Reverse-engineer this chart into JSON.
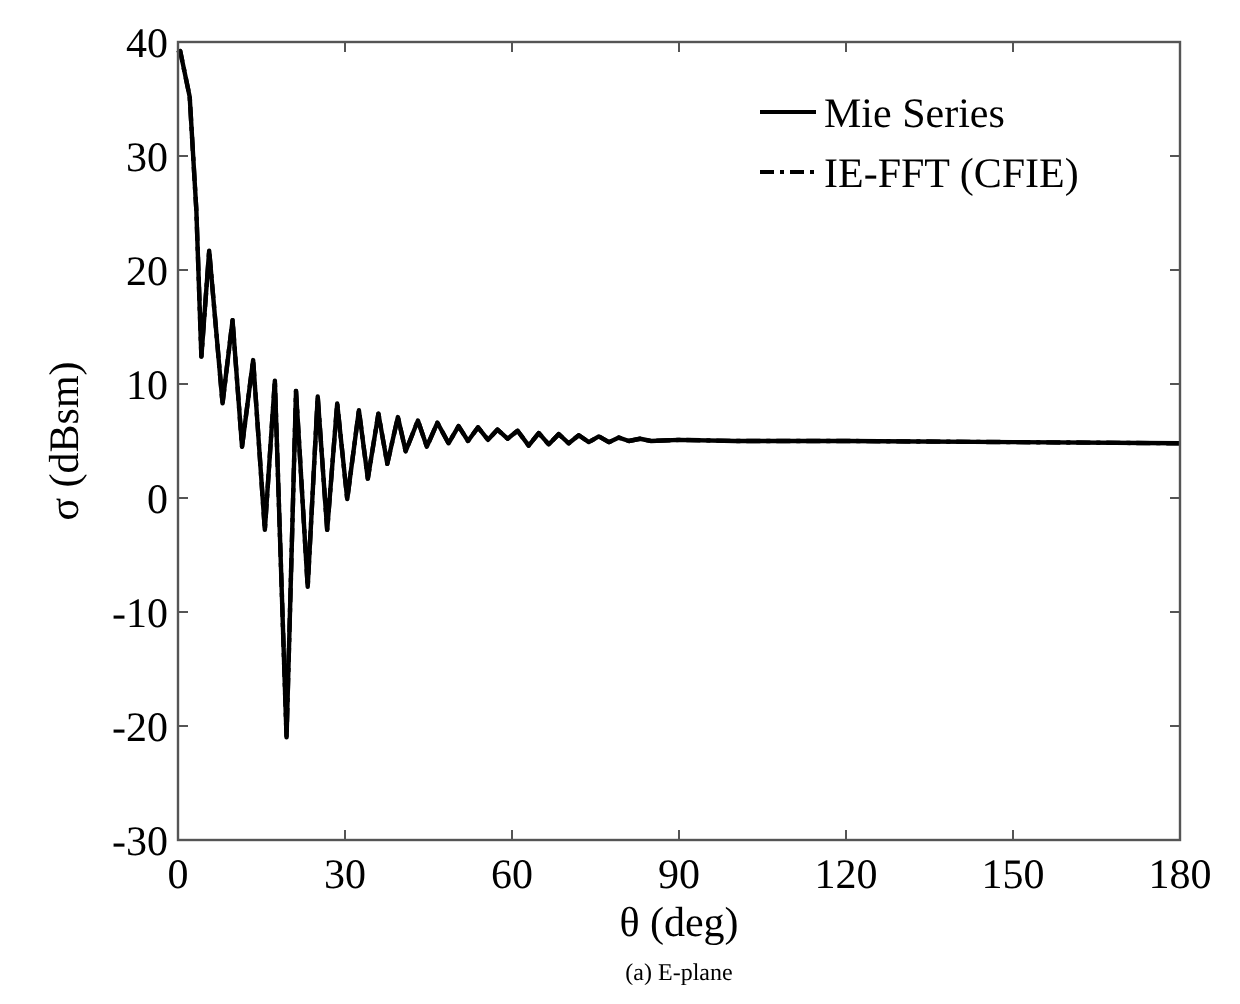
{
  "chart_data": {
    "type": "line",
    "xlabel": "θ (deg)",
    "ylabel": "σ (dBsm)",
    "annotations": [
      "(a) E-plane"
    ],
    "x": [
      0,
      0.4,
      2.1,
      3.3,
      4.2,
      5.6,
      8.0,
      9.8,
      11.5,
      13.5,
      15.6,
      17.4,
      19.5,
      21.2,
      23.3,
      25.1,
      26.8,
      28.6,
      30.4,
      32.5,
      34.1,
      36.0,
      37.6,
      39.5,
      40.9,
      43.1,
      44.7,
      46.6,
      48.6,
      50.4,
      52.1,
      53.9,
      55.7,
      57.4,
      59.2,
      61,
      63,
      64.8,
      66.6,
      68.4,
      70.2,
      72,
      73.8,
      75.6,
      77.4,
      79.2,
      81,
      83,
      85,
      90,
      100,
      120,
      150,
      180
    ],
    "series": [
      {
        "name": "Mie Series",
        "color": "#000000",
        "line_style": "solid",
        "values": [
          39,
          39.2,
          35.2,
          25.2,
          12.4,
          21.7,
          8.3,
          15.6,
          4.5,
          12.1,
          -2.8,
          10.3,
          -21,
          9.4,
          -7.8,
          8.9,
          -2.8,
          8.3,
          -0.1,
          7.7,
          1.7,
          7.4,
          3.0,
          7.1,
          4.1,
          6.8,
          4.5,
          6.6,
          4.8,
          6.3,
          5.0,
          6.2,
          5.1,
          6.0,
          5.2,
          5.9,
          4.6,
          5.7,
          4.7,
          5.6,
          4.8,
          5.5,
          4.9,
          5.4,
          4.9,
          5.3,
          5.0,
          5.2,
          5.0,
          5.1,
          5.0,
          5.0,
          4.9,
          4.8
        ]
      },
      {
        "name": "IE-FFT (CFIE)",
        "color": "#000000",
        "line_style": "dashed",
        "values": [
          39,
          39.2,
          35.2,
          25.2,
          12.4,
          21.7,
          8.3,
          15.6,
          4.5,
          12.1,
          -2.8,
          10.3,
          -21,
          9.4,
          -7.8,
          8.9,
          -2.8,
          8.3,
          -0.1,
          7.7,
          1.7,
          7.4,
          3.0,
          7.1,
          4.1,
          6.8,
          4.5,
          6.6,
          4.8,
          6.3,
          5.0,
          6.2,
          5.1,
          6.0,
          5.2,
          5.9,
          4.6,
          5.7,
          4.7,
          5.6,
          4.8,
          5.5,
          4.9,
          5.4,
          4.9,
          5.3,
          5.0,
          5.2,
          5.0,
          5.1,
          5.0,
          5.0,
          4.9,
          4.8
        ]
      }
    ],
    "xlim": [
      0,
      180
    ],
    "xticks": [
      0,
      30,
      60,
      90,
      120,
      150,
      180
    ],
    "ylim": [
      -30,
      40
    ],
    "yticks": [
      -30,
      -20,
      -10,
      0,
      10,
      20,
      30,
      40
    ],
    "grid": false,
    "legend": "top right"
  }
}
